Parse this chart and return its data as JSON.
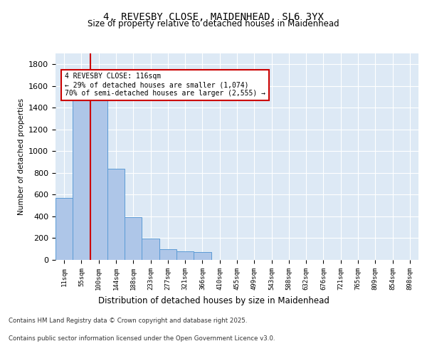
{
  "title_line1": "4, REVESBY CLOSE, MAIDENHEAD, SL6 3YX",
  "title_line2": "Size of property relative to detached houses in Maidenhead",
  "xlabel": "Distribution of detached houses by size in Maidenhead",
  "ylabel": "Number of detached properties",
  "categories": [
    "11sqm",
    "55sqm",
    "100sqm",
    "144sqm",
    "188sqm",
    "233sqm",
    "277sqm",
    "321sqm",
    "366sqm",
    "410sqm",
    "455sqm",
    "499sqm",
    "543sqm",
    "588sqm",
    "632sqm",
    "676sqm",
    "721sqm",
    "765sqm",
    "809sqm",
    "854sqm",
    "898sqm"
  ],
  "values": [
    570,
    1490,
    1490,
    840,
    390,
    195,
    100,
    80,
    75,
    3,
    0,
    0,
    3,
    0,
    0,
    0,
    0,
    0,
    0,
    0,
    0
  ],
  "bar_color": "#aec6e8",
  "bar_edge_color": "#5b9bd5",
  "vline_x_index": 2,
  "vline_color": "#cc0000",
  "vline_value": 116,
  "ylim": [
    0,
    1900
  ],
  "yticks": [
    0,
    200,
    400,
    600,
    800,
    1000,
    1200,
    1400,
    1600,
    1800
  ],
  "annotation_text": "4 REVESBY CLOSE: 116sqm\n← 29% of detached houses are smaller (1,074)\n70% of semi-detached houses are larger (2,555) →",
  "annotation_box_color": "#ffffff",
  "annotation_box_edge_color": "#cc0000",
  "footer_line1": "Contains HM Land Registry data © Crown copyright and database right 2025.",
  "footer_line2": "Contains public sector information licensed under the Open Government Licence v3.0.",
  "bg_color": "#dde9f5",
  "figure_bg_color": "#ffffff",
  "grid_color": "#ffffff"
}
